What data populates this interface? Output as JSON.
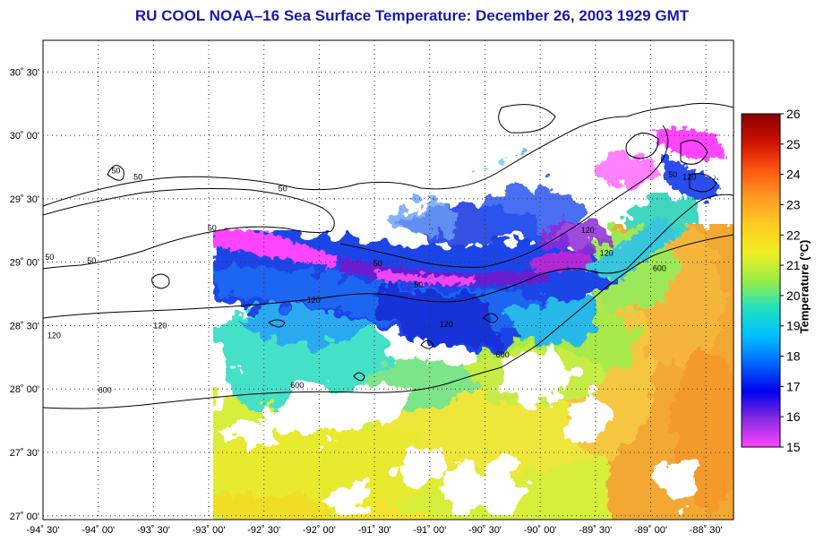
{
  "title": "RU COOL  NOAA–16  Sea Surface Temperature:  December 26, 2003 1929 GMT",
  "lon_labels": [
    "-94˚ 30'",
    "-94˚ 00'",
    "-93˚ 30'",
    "-93˚ 00'",
    "-92˚ 30'",
    "-92˚ 00'",
    "-91˚ 30'",
    "-91˚ 00'",
    "-90˚ 30'",
    "-90˚ 00'",
    "-89˚ 30'",
    "-89˚ 00'",
    "-88˚ 30'"
  ],
  "lon_values": [
    -94.5,
    -94.0,
    -93.5,
    -93.0,
    -92.5,
    -92.0,
    -91.5,
    -91.0,
    -90.5,
    -90.0,
    -89.5,
    -89.0,
    -88.5
  ],
  "lat_labels": [
    "30˚ 30'",
    "30˚ 00'",
    "29˚ 30'",
    "29˚ 00'",
    "28˚ 30'",
    "28˚ 00'",
    "27˚ 30'",
    "27˚ 00'"
  ],
  "lat_values": [
    30.5,
    30.0,
    29.5,
    29.0,
    28.5,
    28.0,
    27.5,
    27.0
  ],
  "colorbar": {
    "label": "Temperature (°C)",
    "min": 15,
    "max": 26,
    "ticks": [
      "26",
      "25",
      "24",
      "23",
      "22",
      "21",
      "20",
      "19",
      "18",
      "17",
      "16",
      "15"
    ],
    "colors": [
      "#ff44ff",
      "#8a2be2",
      "#0000ee",
      "#0066ff",
      "#00bfff",
      "#22e0c0",
      "#99ee44",
      "#eeee22",
      "#ffcc22",
      "#ff9922",
      "#ff5511",
      "#cc1100",
      "#8b0000"
    ]
  },
  "isobaths": {
    "labels": [
      {
        "text": "50",
        "lon": -93.84,
        "lat": 29.7
      },
      {
        "text": "50",
        "lon": -93.64,
        "lat": 29.65
      },
      {
        "text": "50",
        "lon": -92.97,
        "lat": 29.25
      },
      {
        "text": "50",
        "lon": -92.33,
        "lat": 29.56
      },
      {
        "text": "50",
        "lon": -94.44,
        "lat": 29.02
      },
      {
        "text": "50",
        "lon": -94.06,
        "lat": 28.99
      },
      {
        "text": "50",
        "lon": -91.47,
        "lat": 28.97
      },
      {
        "text": "50",
        "lon": -91.1,
        "lat": 28.8
      },
      {
        "text": "50",
        "lon": -88.8,
        "lat": 29.67
      },
      {
        "text": "120",
        "lon": -92.05,
        "lat": 28.68
      },
      {
        "text": "120",
        "lon": -93.44,
        "lat": 28.48
      },
      {
        "text": "120",
        "lon": -94.4,
        "lat": 28.4
      },
      {
        "text": "120",
        "lon": -90.85,
        "lat": 28.49
      },
      {
        "text": "120",
        "lon": -89.4,
        "lat": 29.05
      },
      {
        "text": "120",
        "lon": -89.57,
        "lat": 29.23
      },
      {
        "text": "120",
        "lon": -88.65,
        "lat": 29.65
      },
      {
        "text": "600",
        "lon": -93.94,
        "lat": 27.97
      },
      {
        "text": "600",
        "lon": -92.2,
        "lat": 28.01
      },
      {
        "text": "600",
        "lon": -90.34,
        "lat": 28.25
      },
      {
        "text": "600",
        "lon": -88.92,
        "lat": 28.93
      }
    ]
  }
}
